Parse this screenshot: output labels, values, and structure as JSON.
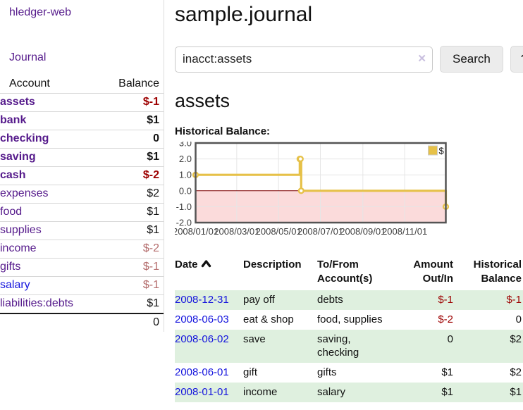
{
  "sidebar": {
    "app_title": "hledger-web",
    "journal_link": "Journal",
    "accounts_table": {
      "columns": {
        "account": "Account",
        "balance": "Balance"
      },
      "rows": [
        {
          "label": "assets",
          "level": 1,
          "bold": true,
          "link_color": "purple",
          "balance": "$-1",
          "tone": "neg-strong"
        },
        {
          "label": "bank",
          "level": 2,
          "bold": true,
          "link_color": "purple",
          "balance": "$1",
          "tone": ""
        },
        {
          "label": "checking",
          "level": 3,
          "bold": true,
          "link_color": "purple",
          "balance": "0",
          "tone": ""
        },
        {
          "label": "saving",
          "level": 3,
          "bold": true,
          "link_color": "purple",
          "balance": "$1",
          "tone": ""
        },
        {
          "label": "cash",
          "level": 2,
          "bold": true,
          "link_color": "purple",
          "balance": "$-2",
          "tone": "neg-strong"
        },
        {
          "label": "expenses",
          "level": 1,
          "bold": false,
          "link_color": "purple",
          "balance": "$2",
          "tone": ""
        },
        {
          "label": "food",
          "level": 2,
          "bold": false,
          "link_color": "purple",
          "balance": "$1",
          "tone": ""
        },
        {
          "label": "supplies",
          "level": 2,
          "bold": false,
          "link_color": "purple",
          "balance": "$1",
          "tone": ""
        },
        {
          "label": "income",
          "level": 1,
          "bold": false,
          "link_color": "purple",
          "balance": "$-2",
          "tone": "neg-soft"
        },
        {
          "label": "gifts",
          "level": 2,
          "bold": false,
          "link_color": "purple",
          "balance": "$-1",
          "tone": "neg-soft"
        },
        {
          "label": "salary",
          "level": 2,
          "bold": false,
          "link_color": "blue",
          "balance": "$-1",
          "tone": "neg-soft"
        },
        {
          "label": "liabilities:debts",
          "level": 1,
          "bold": false,
          "link_color": "purple",
          "balance": "$1",
          "tone": ""
        }
      ],
      "total": "0"
    }
  },
  "main": {
    "title": "sample.journal",
    "search": {
      "value": "inacct:assets",
      "clear_icon": "✕",
      "search_label": "Search",
      "help_label": "?"
    },
    "account_heading": "assets",
    "chart_label": "Historical Balance:"
  },
  "chart_data": {
    "type": "line",
    "style": "step",
    "title": "Historical Balance",
    "series": [
      {
        "name": "$",
        "color": "#e6c148",
        "points": [
          [
            "2008-01-01",
            1
          ],
          [
            "2008-06-01",
            2
          ],
          [
            "2008-06-02",
            2
          ],
          [
            "2008-06-03",
            0
          ],
          [
            "2008-12-31",
            -1
          ]
        ]
      }
    ],
    "xlim": [
      "2008-01-01",
      "2008-12-31"
    ],
    "ylim": [
      -2,
      3
    ],
    "x_ticks": [
      {
        "label": "2008/01/01",
        "date": "2008-01-01"
      },
      {
        "label": "2008/03/01",
        "date": "2008-03-01"
      },
      {
        "label": "2008/05/01",
        "date": "2008-05-01"
      },
      {
        "label": "2008/07/01",
        "date": "2008-07-01"
      },
      {
        "label": "2008/09/01",
        "date": "2008-09-01"
      },
      {
        "label": "2008/11/01",
        "date": "2008-11-01"
      }
    ],
    "y_ticks": [
      {
        "label": "3.0",
        "value": 3
      },
      {
        "label": "2.0",
        "value": 2
      },
      {
        "label": "1.0",
        "value": 1
      },
      {
        "label": "0.0",
        "value": 0
      },
      {
        "label": "-1.0",
        "value": -1
      },
      {
        "label": "-2.0",
        "value": -2
      }
    ],
    "grid": true,
    "legend": {
      "label": "$",
      "position": "top-right"
    },
    "negative_region_color": "#fbdbdb",
    "zero_line_color": "#7d0000"
  },
  "register": {
    "columns": [
      {
        "label": "Date",
        "align": "left",
        "sorted": "asc"
      },
      {
        "label": "Description",
        "align": "left"
      },
      {
        "label": "To/From\nAccount(s)",
        "align": "left"
      },
      {
        "label": "Amount\nOut/In",
        "align": "right"
      },
      {
        "label": "Historical\nBalance",
        "align": "right"
      }
    ],
    "rows": [
      {
        "date": "2008-12-31",
        "description": "pay off",
        "tofrom": "debts",
        "amount": "$-1",
        "amount_neg": true,
        "balance": "$-1",
        "balance_neg": true
      },
      {
        "date": "2008-06-03",
        "description": "eat & shop",
        "tofrom": "food, supplies",
        "amount": "$-2",
        "amount_neg": true,
        "balance": "0",
        "balance_neg": false
      },
      {
        "date": "2008-06-02",
        "description": "save",
        "tofrom": "saving,\nchecking",
        "amount": "0",
        "amount_neg": false,
        "balance": "$2",
        "balance_neg": false
      },
      {
        "date": "2008-06-01",
        "description": "gift",
        "tofrom": "gifts",
        "amount": "$1",
        "amount_neg": false,
        "balance": "$2",
        "balance_neg": false
      },
      {
        "date": "2008-01-01",
        "description": "income",
        "tofrom": "salary",
        "amount": "$1",
        "amount_neg": false,
        "balance": "$1",
        "balance_neg": false
      }
    ]
  },
  "colors": {
    "link_purple": "#551a8b",
    "link_blue": "#1414dd",
    "negative_strong": "#9d0000",
    "negative_soft": "#b36b6b",
    "row_green": "#dff0df",
    "series_gold": "#e6c148",
    "chart_border": "#545454",
    "gridline": "#e6e6e6"
  }
}
